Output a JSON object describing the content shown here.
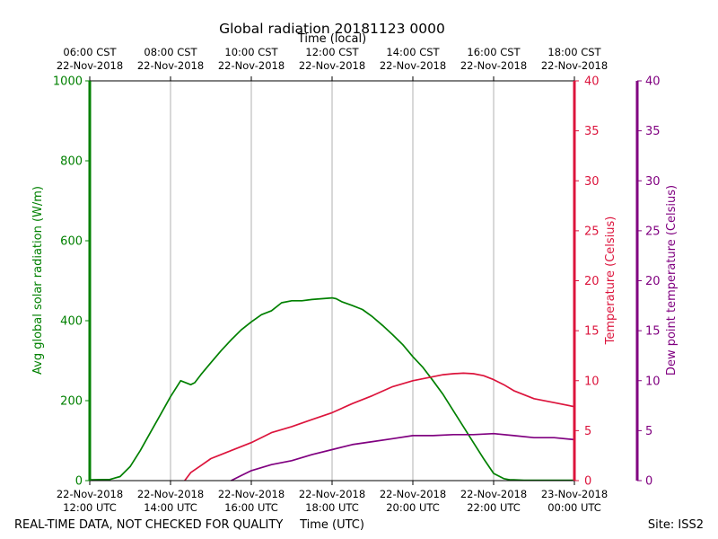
{
  "chart_data": {
    "type": "line",
    "title": "Global radiation 20181123 0000",
    "top_axis_label": "Time (local)",
    "xlabel": "Time (UTC)",
    "footer_left": "REAL-TIME DATA, NOT CHECKED FOR QUALITY",
    "footer_right": "Site: ISS2",
    "x_hours_range": [
      12,
      24
    ],
    "bottom_ticks": [
      {
        "hour": 12,
        "line1": "22-Nov-2018",
        "line2": "12:00 UTC"
      },
      {
        "hour": 14,
        "line1": "22-Nov-2018",
        "line2": "14:00 UTC"
      },
      {
        "hour": 16,
        "line1": "22-Nov-2018",
        "line2": "16:00 UTC"
      },
      {
        "hour": 18,
        "line1": "22-Nov-2018",
        "line2": "18:00 UTC"
      },
      {
        "hour": 20,
        "line1": "22-Nov-2018",
        "line2": "20:00 UTC"
      },
      {
        "hour": 22,
        "line1": "22-Nov-2018",
        "line2": "22:00 UTC"
      },
      {
        "hour": 24,
        "line1": "23-Nov-2018",
        "line2": "00:00 UTC"
      }
    ],
    "top_ticks": [
      {
        "hour": 12,
        "line1": "06:00 CST",
        "line2": "22-Nov-2018"
      },
      {
        "hour": 14,
        "line1": "08:00 CST",
        "line2": "22-Nov-2018"
      },
      {
        "hour": 16,
        "line1": "10:00 CST",
        "line2": "22-Nov-2018"
      },
      {
        "hour": 18,
        "line1": "12:00 CST",
        "line2": "22-Nov-2018"
      },
      {
        "hour": 20,
        "line1": "14:00 CST",
        "line2": "22-Nov-2018"
      },
      {
        "hour": 22,
        "line1": "16:00 CST",
        "line2": "22-Nov-2018"
      },
      {
        "hour": 24,
        "line1": "18:00 CST",
        "line2": "22-Nov-2018"
      }
    ],
    "axes": {
      "radiation": {
        "label": "Avg global solar radiation (W/m)",
        "color": "#008000",
        "range": [
          0,
          1000
        ],
        "ticks": [
          0,
          200,
          400,
          600,
          800,
          1000
        ]
      },
      "temperature": {
        "label": "Temperature (Celsius)",
        "color": "#dc143c",
        "range": [
          0,
          40
        ],
        "ticks": [
          0,
          5,
          10,
          15,
          20,
          25,
          30,
          35,
          40
        ]
      },
      "dewpoint": {
        "label": "Dew point temperature (Celsius)",
        "color": "#800080",
        "range": [
          0,
          40
        ],
        "ticks": [
          0,
          5,
          10,
          15,
          20,
          25,
          30,
          35,
          40
        ]
      }
    },
    "series": [
      {
        "name": "Avg global solar radiation",
        "axis": "radiation",
        "color": "#008000",
        "x": [
          12.0,
          12.5,
          12.75,
          13.0,
          13.25,
          13.5,
          13.75,
          14.0,
          14.25,
          14.5,
          14.6,
          14.75,
          15.0,
          15.25,
          15.5,
          15.75,
          16.0,
          16.25,
          16.5,
          16.75,
          17.0,
          17.25,
          17.5,
          17.75,
          18.0,
          18.1,
          18.25,
          18.5,
          18.75,
          19.0,
          19.25,
          19.5,
          19.75,
          20.0,
          20.25,
          20.5,
          20.75,
          21.0,
          21.25,
          21.5,
          21.75,
          22.0,
          22.25,
          22.4,
          22.5,
          22.75,
          23.0,
          23.5,
          24.0
        ],
        "values": [
          2,
          3,
          10,
          35,
          75,
          120,
          165,
          210,
          250,
          240,
          245,
          265,
          295,
          325,
          352,
          377,
          397,
          415,
          425,
          445,
          450,
          450,
          453,
          455,
          457,
          455,
          447,
          438,
          428,
          410,
          388,
          365,
          340,
          310,
          283,
          250,
          215,
          175,
          135,
          95,
          55,
          18,
          5,
          2,
          2,
          1,
          1,
          1,
          1
        ]
      },
      {
        "name": "Temperature",
        "axis": "temperature",
        "color": "#dc143c",
        "x": [
          14.35,
          14.5,
          14.75,
          15.0,
          15.5,
          16.0,
          16.5,
          17.0,
          17.5,
          18.0,
          18.5,
          19.0,
          19.5,
          20.0,
          20.5,
          20.75,
          21.0,
          21.25,
          21.5,
          21.75,
          22.0,
          22.25,
          22.5,
          23.0,
          23.5,
          24.0
        ],
        "values": [
          0,
          0.8,
          1.5,
          2.2,
          3.0,
          3.8,
          4.8,
          5.4,
          6.1,
          6.8,
          7.7,
          8.5,
          9.4,
          10.0,
          10.4,
          10.6,
          10.7,
          10.75,
          10.7,
          10.5,
          10.1,
          9.6,
          9.0,
          8.2,
          7.8,
          7.4
        ]
      },
      {
        "name": "Dew point temperature",
        "axis": "dewpoint",
        "color": "#800080",
        "x": [
          15.5,
          15.75,
          16.0,
          16.5,
          17.0,
          17.5,
          18.0,
          18.5,
          19.0,
          19.5,
          20.0,
          20.5,
          21.0,
          21.5,
          22.0,
          22.5,
          23.0,
          23.5,
          24.0
        ],
        "values": [
          0,
          0.5,
          1.0,
          1.6,
          2.0,
          2.6,
          3.1,
          3.6,
          3.9,
          4.2,
          4.5,
          4.5,
          4.6,
          4.6,
          4.7,
          4.5,
          4.3,
          4.3,
          4.1
        ]
      }
    ]
  }
}
